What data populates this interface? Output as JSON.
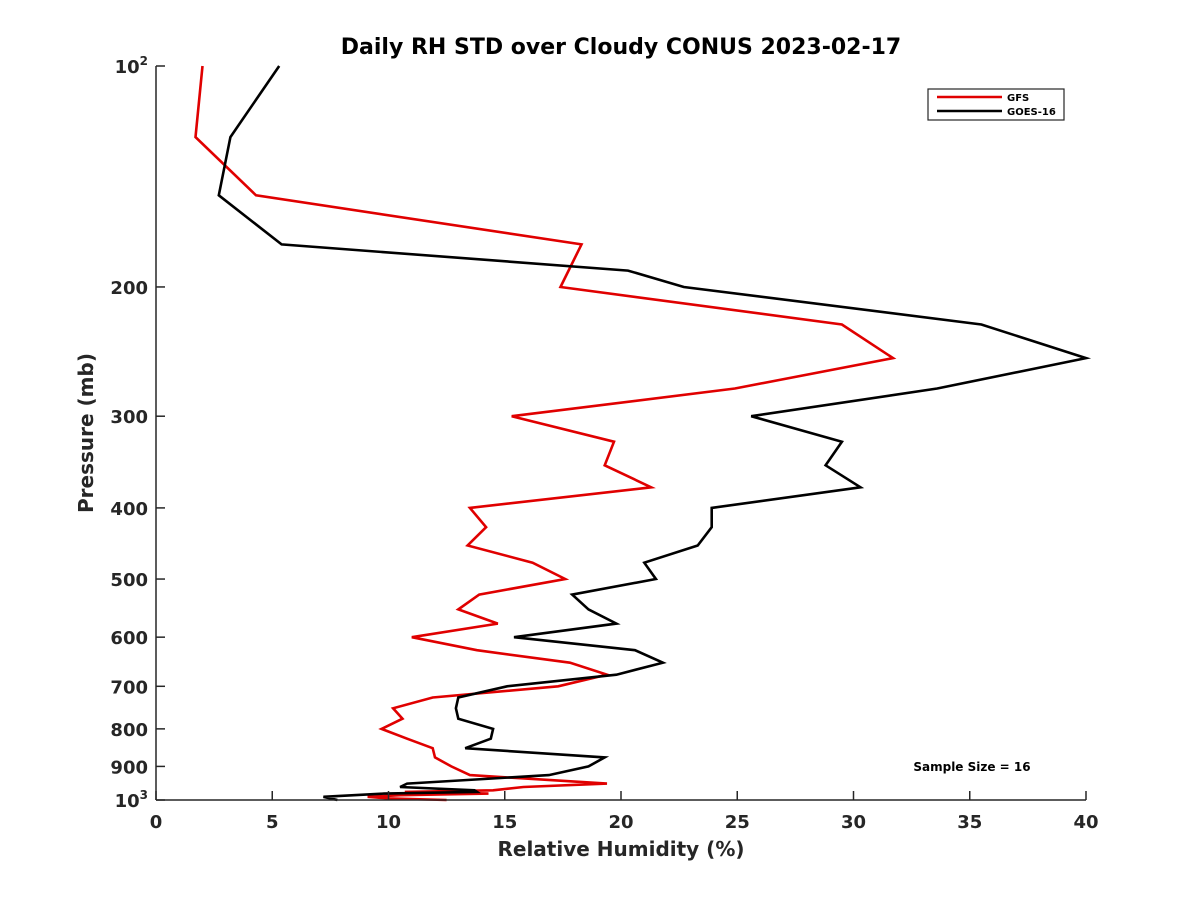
{
  "chart_data": {
    "type": "line",
    "title": "Daily RH STD over Cloudy CONUS 2023-02-17",
    "xlabel": "Relative Humidity (%)",
    "ylabel": "Pressure (mb)",
    "xlim": [
      0,
      40
    ],
    "ylim": [
      100,
      1000
    ],
    "y_scale": "log",
    "y_reversed": true,
    "x_ticks": [
      "0",
      "5",
      "10",
      "15",
      "20",
      "25",
      "30",
      "35",
      "40"
    ],
    "y_ticks": [
      {
        "value": 100,
        "base": "10",
        "exp": "2",
        "label": ""
      },
      {
        "value": 200,
        "label": "200"
      },
      {
        "value": 300,
        "label": "300"
      },
      {
        "value": 400,
        "label": "400"
      },
      {
        "value": 500,
        "label": "500"
      },
      {
        "value": 600,
        "label": "600"
      },
      {
        "value": 700,
        "label": "700"
      },
      {
        "value": 800,
        "label": "800"
      },
      {
        "value": 900,
        "label": "900"
      },
      {
        "value": 1000,
        "base": "10",
        "exp": "3",
        "label": ""
      }
    ],
    "legend_position": "top-right",
    "grid": false,
    "annotation": "Sample Size = 16",
    "series": [
      {
        "name": "GFS",
        "color": "#e00000",
        "points": [
          [
            2.0,
            100
          ],
          [
            1.7,
            125
          ],
          [
            4.3,
            150
          ],
          [
            18.3,
            175
          ],
          [
            17.4,
            200
          ],
          [
            29.5,
            225
          ],
          [
            31.7,
            250
          ],
          [
            24.9,
            275
          ],
          [
            15.3,
            300
          ],
          [
            19.7,
            325
          ],
          [
            19.3,
            350
          ],
          [
            21.3,
            375
          ],
          [
            13.5,
            400
          ],
          [
            14.2,
            425
          ],
          [
            13.4,
            450
          ],
          [
            16.2,
            475
          ],
          [
            17.6,
            500
          ],
          [
            13.9,
            525
          ],
          [
            13.0,
            550
          ],
          [
            14.7,
            575
          ],
          [
            11.0,
            600
          ],
          [
            13.8,
            625
          ],
          [
            17.8,
            650
          ],
          [
            19.4,
            675
          ],
          [
            17.3,
            700
          ],
          [
            11.9,
            725
          ],
          [
            10.2,
            750
          ],
          [
            10.6,
            775
          ],
          [
            9.7,
            800
          ],
          [
            10.8,
            825
          ],
          [
            11.9,
            850
          ],
          [
            12.0,
            875
          ],
          [
            12.7,
            900
          ],
          [
            13.5,
            925
          ],
          [
            19.4,
            950
          ],
          [
            15.8,
            960
          ],
          [
            14.5,
            970
          ],
          [
            10.7,
            975
          ],
          [
            14.3,
            980
          ],
          [
            10.5,
            985
          ],
          [
            9.1,
            990
          ],
          [
            10.0,
            995
          ],
          [
            12.5,
            1000
          ]
        ]
      },
      {
        "name": "GOES-16",
        "color": "#000000",
        "points": [
          [
            5.3,
            100
          ],
          [
            3.2,
            125
          ],
          [
            2.7,
            150
          ],
          [
            5.4,
            175
          ],
          [
            20.3,
            190
          ],
          [
            22.7,
            200
          ],
          [
            35.5,
            225
          ],
          [
            40.0,
            250
          ],
          [
            33.6,
            275
          ],
          [
            25.6,
            300
          ],
          [
            29.5,
            325
          ],
          [
            28.8,
            350
          ],
          [
            30.3,
            375
          ],
          [
            23.9,
            400
          ],
          [
            23.9,
            425
          ],
          [
            23.3,
            450
          ],
          [
            21.0,
            475
          ],
          [
            21.5,
            500
          ],
          [
            17.9,
            525
          ],
          [
            18.6,
            550
          ],
          [
            19.8,
            575
          ],
          [
            15.4,
            600
          ],
          [
            20.6,
            625
          ],
          [
            21.8,
            650
          ],
          [
            19.8,
            675
          ],
          [
            15.1,
            700
          ],
          [
            13.0,
            725
          ],
          [
            12.9,
            750
          ],
          [
            13.0,
            775
          ],
          [
            14.5,
            800
          ],
          [
            14.4,
            825
          ],
          [
            13.3,
            850
          ],
          [
            19.3,
            875
          ],
          [
            18.6,
            900
          ],
          [
            16.9,
            925
          ],
          [
            10.8,
            950
          ],
          [
            10.5,
            960
          ],
          [
            13.7,
            970
          ],
          [
            13.8,
            975
          ],
          [
            9.8,
            980
          ],
          [
            7.2,
            990
          ],
          [
            7.8,
            1000
          ]
        ]
      }
    ]
  }
}
